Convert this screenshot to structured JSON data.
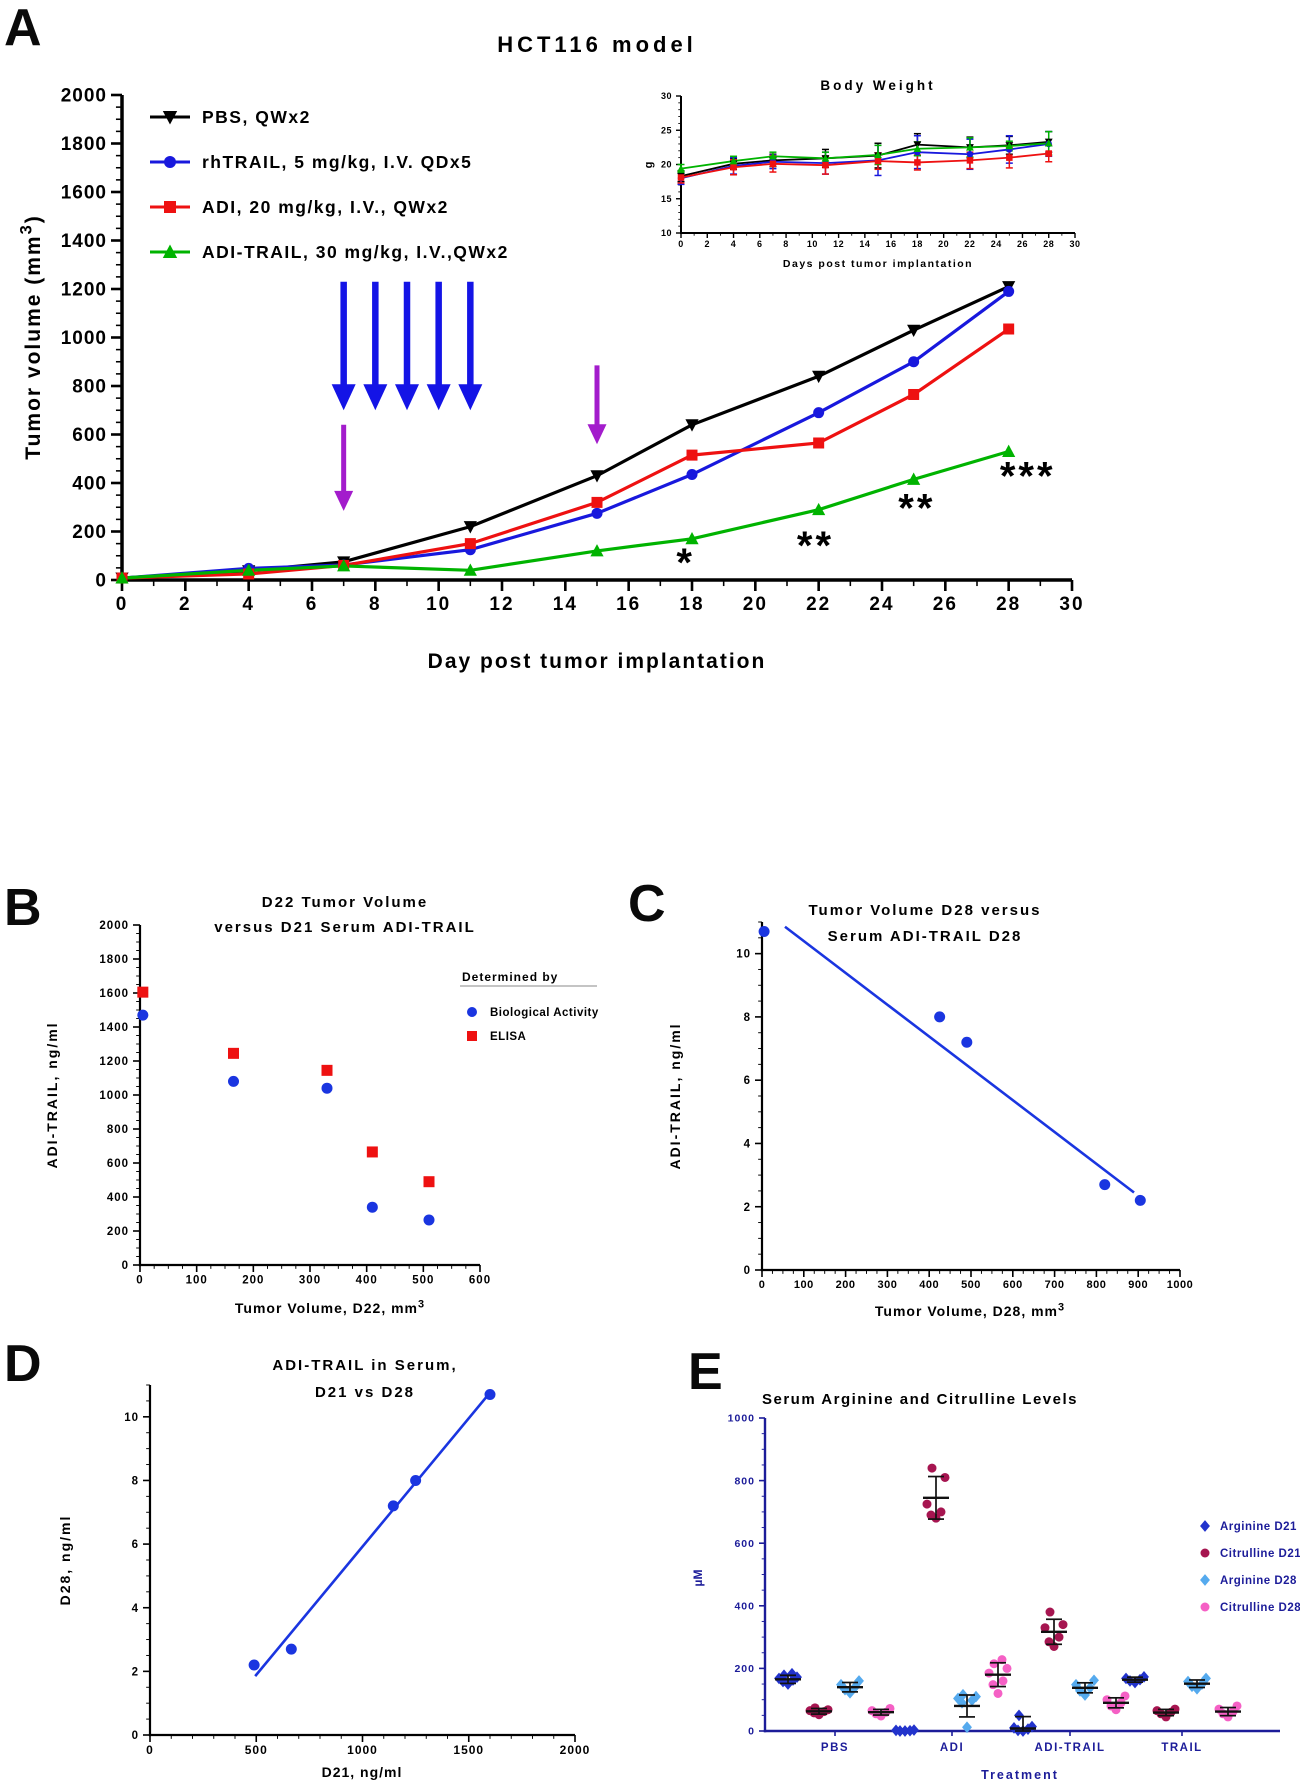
{
  "page": {
    "bg": "#ffffff"
  },
  "panel_labels": {
    "A": "A",
    "B": "B",
    "C": "C",
    "D": "D",
    "E": "E"
  },
  "colors": {
    "black": "#000000",
    "blue": "#1818dd",
    "red": "#ee1111",
    "green": "#00b300",
    "arrow_blue": "#1414e6",
    "arrow_purple": "#a31ccc",
    "navy": "#1c1c99",
    "scatter_blue": "#1a35e0",
    "arg_d21": "#2233cc",
    "cit_d21": "#a61550",
    "arg_d28": "#55aaee",
    "cit_d28": "#f560c5"
  },
  "chart_data": [
    {
      "id": "tumor",
      "type": "line",
      "title": "HCT116 model",
      "xlabel": "Day post tumor implantation",
      "ylabel": "Tumor volume (mm³)",
      "xlim": [
        0,
        30
      ],
      "ylim": [
        0,
        2000
      ],
      "xticks": [
        0,
        2,
        4,
        6,
        8,
        10,
        12,
        14,
        16,
        18,
        20,
        22,
        24,
        26,
        28,
        30
      ],
      "yticks": [
        0,
        200,
        400,
        600,
        800,
        1000,
        1200,
        1400,
        1600,
        1800,
        2000
      ],
      "x": [
        0,
        4,
        7,
        11,
        15,
        18,
        22,
        25,
        28
      ],
      "series": [
        {
          "name": "PBS, QWx2",
          "color_key": "black",
          "marker": "tri-down",
          "values": [
            8,
            38,
            75,
            220,
            430,
            640,
            840,
            1030,
            1210
          ]
        },
        {
          "name": "rhTRAIL, 5 mg/kg, I.V. QDx5",
          "color_key": "blue",
          "marker": "circle",
          "values": [
            8,
            48,
            62,
            125,
            275,
            435,
            690,
            900,
            1190
          ]
        },
        {
          "name": "ADI, 20 mg/kg, I.V., QWx2",
          "color_key": "red",
          "marker": "square",
          "values": [
            8,
            25,
            60,
            150,
            320,
            515,
            565,
            765,
            1035
          ]
        },
        {
          "name": "ADI-TRAIL, 30 mg/kg, I.V.,QWx2",
          "color_key": "green",
          "marker": "tri-up",
          "values": [
            8,
            40,
            58,
            40,
            120,
            170,
            290,
            415,
            530
          ]
        }
      ],
      "annotations": {
        "blue_arrows": {
          "days": [
            7,
            8,
            9,
            10,
            11
          ],
          "from": 1230,
          "to": 700
        },
        "purple_arrows": [
          {
            "day": 7,
            "from": 640,
            "to": 285
          },
          {
            "day": 15,
            "from": 885,
            "to": 560
          }
        ],
        "significance": [
          {
            "day": 17.8,
            "value": 75,
            "text": "*"
          },
          {
            "day": 21.9,
            "value": 144,
            "text": "**"
          },
          {
            "day": 25.1,
            "value": 300,
            "text": "**"
          },
          {
            "day": 28.6,
            "value": 430,
            "text": "***"
          }
        ]
      }
    },
    {
      "id": "bodyweight",
      "type": "line",
      "title": "Body Weight",
      "xlabel": "Days post tumor implantation",
      "ylabel": "g",
      "xlim": [
        0,
        30
      ],
      "ylim": [
        10,
        30
      ],
      "xticks": [
        0,
        2,
        4,
        6,
        8,
        10,
        12,
        14,
        16,
        18,
        20,
        22,
        24,
        26,
        28,
        30
      ],
      "yticks": [
        10,
        15,
        20,
        25,
        30
      ],
      "x": [
        0,
        4,
        7,
        11,
        15,
        18,
        22,
        25,
        28
      ],
      "series": [
        {
          "color_key": "black",
          "marker": "tri-down",
          "values": [
            18.3,
            20.1,
            20.6,
            20.9,
            21.3,
            22.9,
            22.5,
            22.8,
            23.3
          ],
          "errors": [
            0.8,
            0.8,
            0.9,
            1.3,
            1.8,
            1.6,
            1.5,
            1.3,
            1.5
          ]
        },
        {
          "color_key": "blue",
          "marker": "circle",
          "values": [
            18.0,
            19.8,
            20.4,
            20.2,
            20.6,
            21.8,
            21.5,
            22.2,
            23.0
          ],
          "errors": [
            0.9,
            1.2,
            1.0,
            1.6,
            2.2,
            2.4,
            2.2,
            2.0,
            1.8
          ]
        },
        {
          "color_key": "red",
          "marker": "square",
          "values": [
            18.1,
            19.6,
            20.1,
            19.9,
            20.5,
            20.3,
            20.6,
            21.0,
            21.6
          ],
          "errors": [
            0.8,
            1.1,
            1.2,
            1.3,
            1.2,
            1.1,
            1.2,
            1.5,
            1.2
          ]
        },
        {
          "color_key": "green",
          "marker": "tri-up",
          "values": [
            19.4,
            20.5,
            21.2,
            20.9,
            21.4,
            22.3,
            22.5,
            22.7,
            23.1
          ],
          "errors": [
            0.6,
            0.7,
            0.6,
            0.9,
            1.4,
            1.0,
            1.4,
            0.7,
            1.7
          ]
        }
      ]
    },
    {
      "id": "d22",
      "type": "scatter",
      "title_lines": [
        "D22 Tumor Volume",
        "versus D21 Serum  ADI-TRAIL"
      ],
      "xlabel": "Tumor Volume, D22, mm³",
      "ylabel": "ADI-TRAIL, ng/ml",
      "xlim": [
        0,
        600
      ],
      "ylim": [
        0,
        2000
      ],
      "xticks": [
        0,
        100,
        200,
        300,
        400,
        500,
        600
      ],
      "yticks": [
        0,
        200,
        400,
        600,
        800,
        1000,
        1200,
        1400,
        1600,
        1800,
        2000
      ],
      "legend": {
        "title": "Determined by",
        "entries": [
          {
            "label": "Biological Activity",
            "color_key": "scatter_blue",
            "marker": "circle"
          },
          {
            "label": "ELISA",
            "color_key": "red",
            "marker": "square"
          }
        ]
      },
      "series": [
        {
          "color_key": "scatter_blue",
          "marker": "circle",
          "points": [
            [
              5,
              1470
            ],
            [
              165,
              1080
            ],
            [
              330,
              1040
            ],
            [
              410,
              340
            ],
            [
              510,
              265
            ]
          ]
        },
        {
          "color_key": "red",
          "marker": "square",
          "points": [
            [
              5,
              1605
            ],
            [
              165,
              1245
            ],
            [
              330,
              1145
            ],
            [
              410,
              665
            ],
            [
              510,
              490
            ]
          ]
        }
      ]
    },
    {
      "id": "d28corr",
      "type": "scatter",
      "title_lines": [
        "Tumor Volume D28 versus",
        "Serum  ADI-TRAIL D28"
      ],
      "xlabel": "Tumor Volume, D28, mm³",
      "ylabel": "ADI-TRAIL, ng/ml",
      "xlim": [
        0,
        1000
      ],
      "ylim": [
        0,
        11
      ],
      "xticks": [
        0,
        100,
        200,
        300,
        400,
        500,
        600,
        700,
        800,
        900,
        1000
      ],
      "yticks": [
        0,
        2,
        4,
        6,
        8,
        10
      ],
      "series": [
        {
          "color_key": "scatter_blue",
          "marker": "circle",
          "points": [
            [
              5,
              10.7
            ],
            [
              425,
              8.0
            ],
            [
              490,
              7.2
            ],
            [
              820,
              2.7
            ],
            [
              905,
              2.2
            ]
          ]
        }
      ],
      "trend": {
        "from": [
          55,
          10.85
        ],
        "to": [
          890,
          2.45
        ],
        "color_key": "scatter_blue"
      }
    },
    {
      "id": "serumcorr",
      "type": "scatter",
      "title_lines": [
        "ADI-TRAIL in  Serum,",
        "D21 vs D28"
      ],
      "xlabel": "D21, ng/ml",
      "ylabel": "D28, ng/ml",
      "xlim": [
        0,
        2000
      ],
      "ylim": [
        0,
        11
      ],
      "xticks": [
        0,
        500,
        1000,
        1500,
        2000
      ],
      "yticks": [
        0,
        2,
        4,
        6,
        8,
        10
      ],
      "series": [
        {
          "color_key": "scatter_blue",
          "marker": "circle",
          "points": [
            [
              490,
              2.2
            ],
            [
              665,
              2.7
            ],
            [
              1145,
              7.2
            ],
            [
              1250,
              8.0
            ],
            [
              1600,
              10.7
            ]
          ]
        }
      ],
      "trend": {
        "from": [
          495,
          1.85
        ],
        "to": [
          1605,
          10.8
        ],
        "color_key": "scatter_blue"
      }
    },
    {
      "id": "aminoacids",
      "type": "grouped-scatter",
      "title": "Serum Arginine and Citrulline Levels",
      "xlabel": "Treatment",
      "ylabel": "µM",
      "ylim": [
        0,
        1000
      ],
      "yticks": [
        0,
        200,
        400,
        600,
        800,
        1000
      ],
      "categories": [
        "PBS",
        "ADI",
        "ADI-TRAIL",
        "TRAIL"
      ],
      "series": [
        {
          "name": "Arginine D21",
          "color_key": "arg_d21",
          "marker": "diamond",
          "groups": [
            {
              "points": [
                150,
                158,
                163,
                168,
                172,
                178,
                183
              ],
              "mean": 165,
              "sd": 13
            },
            {
              "points": [
                0,
                0,
                1,
                2,
                3
              ],
              "mean": null,
              "sd": null
            },
            {
              "points": [
                0,
                2,
                6,
                10,
                14,
                50
              ],
              "mean": 8,
              "sd": 38
            },
            {
              "points": [
                155,
                160,
                164,
                168,
                173
              ],
              "mean": 164,
              "sd": 8
            }
          ]
        },
        {
          "name": "Citrulline D21",
          "color_key": "cit_d21",
          "marker": "circle",
          "groups": [
            {
              "points": [
                52,
                58,
                62,
                65,
                68,
                74
              ],
              "mean": 63,
              "sd": 9
            },
            {
              "points": [
                680,
                690,
                700,
                725,
                810,
                840
              ],
              "mean": 745,
              "sd": 68
            },
            {
              "points": [
                270,
                285,
                300,
                330,
                340,
                380
              ],
              "mean": 317,
              "sd": 40
            },
            {
              "points": [
                45,
                55,
                60,
                65,
                70
              ],
              "mean": 59,
              "sd": 10
            }
          ]
        },
        {
          "name": "Arginine D28",
          "color_key": "arg_d28",
          "marker": "diamond",
          "groups": [
            {
              "points": [
                122,
                132,
                140,
                148,
                160
              ],
              "mean": 140,
              "sd": 15
            },
            {
              "points": [
                12,
                90,
                98,
                104,
                110,
                116
              ],
              "mean": 80,
              "sd": 35
            },
            {
              "points": [
                115,
                128,
                138,
                148,
                162
              ],
              "mean": 138,
              "sd": 16
            },
            {
              "points": [
                135,
                143,
                150,
                158,
                168
              ],
              "mean": 151,
              "sd": 12
            }
          ]
        },
        {
          "name": "Citrulline D28",
          "color_key": "cit_d28",
          "marker": "circle",
          "groups": [
            {
              "points": [
                48,
                55,
                60,
                65,
                72
              ],
              "mean": 60,
              "sd": 9
            },
            {
              "points": [
                120,
                148,
                160,
                185,
                200,
                215,
                228
              ],
              "mean": 180,
              "sd": 38
            },
            {
              "points": [
                68,
                80,
                90,
                100,
                112
              ],
              "mean": 90,
              "sd": 16
            },
            {
              "points": [
                45,
                55,
                62,
                70,
                80
              ],
              "mean": 62,
              "sd": 13
            }
          ]
        }
      ]
    }
  ]
}
